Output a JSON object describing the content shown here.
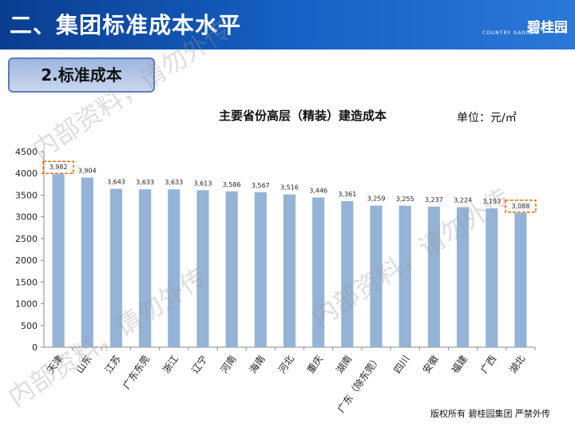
{
  "header": {
    "title": "二、集团标准成本水平"
  },
  "logo": {
    "name": "碧桂园",
    "sub": "COUNTRY GARDEN"
  },
  "section": {
    "label": "2.标准成本"
  },
  "footer": {
    "text": "版权所有  碧桂园集团 严禁外传"
  },
  "watermarks": [
    "内部资料，请勿外传",
    "内部资料，请勿外传",
    "内部资料，请勿外传"
  ],
  "colors": {
    "header": "#1560c4",
    "bar": "#95b3d7",
    "highlight": "#e36c09"
  },
  "chart_data": {
    "type": "bar",
    "title": "主要省份高层（精装）建造成本",
    "unit": "单位：元/㎡",
    "categories": [
      "天津",
      "山东",
      "江苏",
      "广东东莞",
      "浙江",
      "辽宁",
      "河南",
      "海南",
      "河北",
      "重庆",
      "湖南",
      "广东（除东莞）",
      "四川",
      "安徽",
      "福建",
      "广西",
      "湖北"
    ],
    "values": [
      3982,
      3904,
      3643,
      3633,
      3633,
      3613,
      3586,
      3567,
      3516,
      3446,
      3361,
      3259,
      3255,
      3237,
      3224,
      3193,
      3088
    ],
    "value_labels": [
      "3,982",
      "3,904",
      "3,643",
      "3,633",
      "3,633",
      "3,613",
      "3,586",
      "3,567",
      "3,516",
      "3,446",
      "3,361",
      "3,259",
      "3,255",
      "3,237",
      "3,224",
      "3,193",
      "3,088"
    ],
    "highlighted": [
      "天津",
      "湖北"
    ],
    "yticks": [
      0,
      500,
      1000,
      1500,
      2000,
      2500,
      3000,
      3500,
      4000,
      4500
    ],
    "ylim": [
      0,
      4500
    ],
    "grid": false,
    "legend": "none"
  }
}
